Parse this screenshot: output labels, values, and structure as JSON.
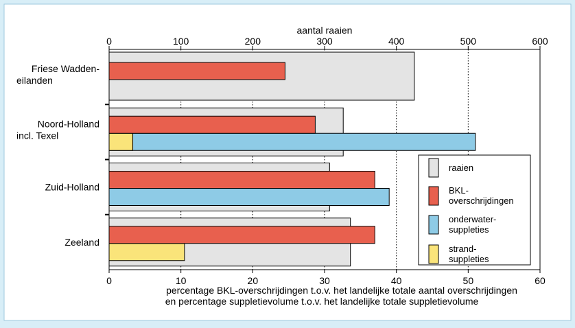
{
  "colors": {
    "background": "#d8eef7",
    "panel": "#ffffff",
    "raaien": "#e4e4e4",
    "bkl": "#e8604e",
    "onderwater": "#8ecbe6",
    "strand": "#fae47a"
  },
  "chart_data": {
    "type": "bar",
    "orientation": "horizontal",
    "top_axis": {
      "label": "aantal raaien",
      "range": [
        0,
        600
      ],
      "ticks": [
        "0",
        "100",
        "200",
        "300",
        "400",
        "500",
        "600"
      ]
    },
    "bottom_axis": {
      "label_line1": "percentage BKL-overschrijdingen t.o.v. het landelijke totale aantal overschrijdingen",
      "label_line2": "en percentage suppletievolume t.o.v. het landelijke totale suppletievolume",
      "range": [
        0,
        60
      ],
      "ticks": [
        "0",
        "10",
        "20",
        "30",
        "40",
        "50",
        "60"
      ]
    },
    "grid": "vertical dotted lines",
    "legend_position": "bottom-right",
    "categories": [
      {
        "line1": "Friese Wadden-",
        "line2": "eilanden"
      },
      {
        "line1": "Noord-Holland",
        "line2": "incl. Texel"
      },
      {
        "line1": "Zuid-Holland",
        "line2": ""
      },
      {
        "line1": "Zeeland",
        "line2": ""
      }
    ],
    "raaien": [
      425,
      326,
      307,
      336
    ],
    "series": [
      {
        "key": "bkl",
        "values": [
          24.5,
          28.7,
          37,
          37
        ]
      },
      {
        "key": "onderwater",
        "values": [
          null,
          51,
          39,
          null
        ]
      },
      {
        "key": "strand",
        "values": [
          null,
          3.3,
          null,
          10.5
        ]
      }
    ],
    "legend": [
      {
        "key": "raaien",
        "line1": "raaien",
        "line2": ""
      },
      {
        "key": "bkl",
        "line1": "BKL-",
        "line2": "overschrijdingen"
      },
      {
        "key": "onderwater",
        "line1": "onderwater-",
        "line2": "suppleties"
      },
      {
        "key": "strand",
        "line1": "strand-",
        "line2": "suppleties"
      }
    ]
  }
}
